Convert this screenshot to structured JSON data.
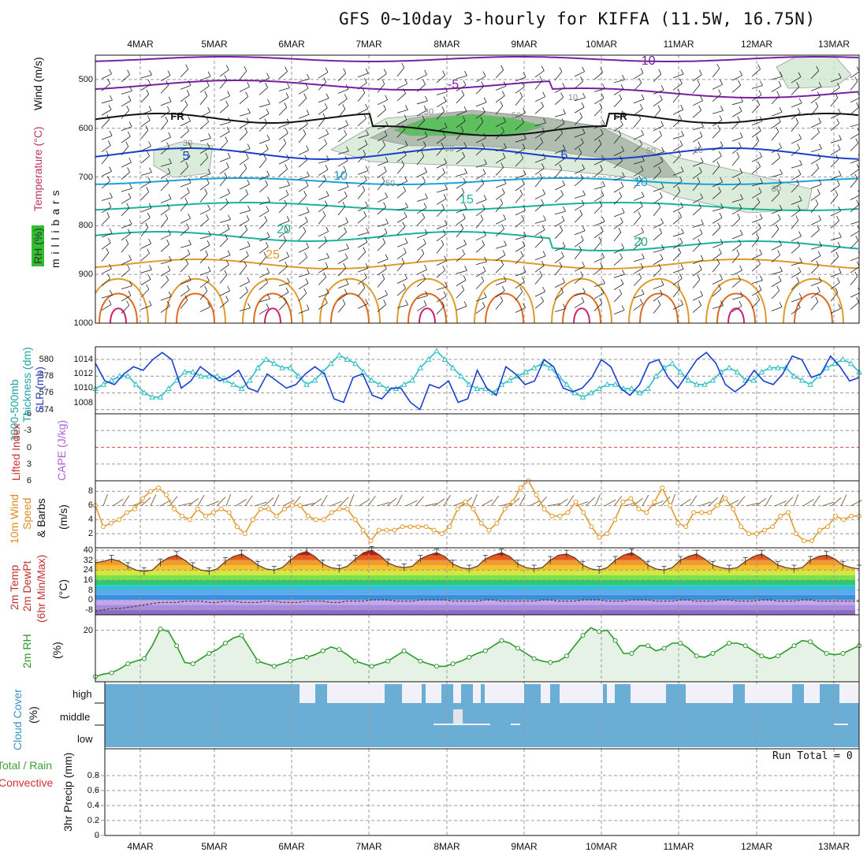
{
  "title": "GFS 0~10day 3-hourly for KIFFA (11.5W, 16.75N)",
  "dates": [
    "4MAR",
    "5MAR",
    "6MAR",
    "7MAR",
    "8MAR",
    "9MAR",
    "10MAR",
    "11MAR",
    "12MAR",
    "13MAR"
  ],
  "colors": {
    "grid": "#999999",
    "isotherm_cold": "#7a1fa2",
    "isotherm_blue": "#1a3fcf",
    "isotherm_cyan": "#1aa3d9",
    "isotherm_teal": "#19b39a",
    "isotherm_orange": "#e09a2a",
    "isotherm_red": "#d0206a",
    "rh_fill": "#7fc47f",
    "slp": "#1a3fcf",
    "thickness": "#2bbfc4",
    "wind10m": "#e49a2a",
    "rh2m": "#2a9a2a",
    "cloud": "#6aaed6",
    "lifted_zero": "#e05050"
  },
  "chart_data": [
    {
      "type": "heatmap",
      "ylabel": "m i l l i b a r s",
      "side_labels": [
        "Wind (m/s)",
        "Temperature (°C)",
        "RH (%)"
      ],
      "y_ticks": [
        "500",
        "600",
        "700",
        "800",
        "900",
        "1000"
      ],
      "ylim": [
        450,
        1000
      ],
      "isotherm_labels": [
        "-10",
        "-5",
        "FR",
        "FR",
        "5",
        "5",
        "10",
        "10",
        "15",
        "20",
        "20",
        "25"
      ],
      "rh_labels": [
        "30",
        "30",
        "50",
        "50",
        "60",
        "50",
        "10",
        "30",
        "10"
      ]
    },
    {
      "type": "line",
      "side_labels": [
        "1000-500mb",
        "Thickness (dm)",
        "SLP (mb)"
      ],
      "y_ticks_left": [
        "580",
        "578",
        "576",
        "574"
      ],
      "y_ticks_right": [
        "1014",
        "1012",
        "1010",
        "1008"
      ],
      "series": [
        {
          "name": "SLP (mb)",
          "values": [
            1013.5,
            1011.0,
            1010.5,
            1012.0,
            1013.0,
            1012.5,
            1014.0,
            1015.0,
            1014.0,
            1010.0,
            1011.0,
            1013.0,
            1012.0,
            1011.0,
            1011.5,
            1012.5,
            1010.0,
            1009.5,
            1012.0,
            1011.0,
            1010.0,
            1010.5,
            1012.0,
            1013.0,
            1012.0,
            1008.5,
            1008.0,
            1011.5,
            1012.0,
            1009.0,
            1008.5,
            1010.0,
            1010.0,
            1008.0,
            1007.0,
            1010.5,
            1010.0,
            1011.0,
            1008.0,
            1008.5,
            1012.5,
            1010.0,
            1009.0,
            1013.0,
            1012.0,
            1010.5,
            1011.0,
            1014.0,
            1013.0,
            1010.0,
            1009.5,
            1010.0,
            1011.5,
            1014.0,
            1013.0,
            1010.0,
            1009.0,
            1010.5,
            1013.5,
            1014.0,
            1011.5,
            1010.0,
            1012.0,
            1014.0,
            1015.0,
            1013.5,
            1010.5,
            1009.5,
            1010.5,
            1012.5,
            1011.0,
            1010.5,
            1012.0,
            1014.5,
            1014.0,
            1011.5,
            1012.0,
            1014.5,
            1013.0,
            1011.0,
            1011.5
          ]
        },
        {
          "name": "1000-500mb Thickness (dm)",
          "values": [
            576.5,
            577.0,
            577.5,
            578.0,
            578.0,
            577.0,
            576.0,
            575.5,
            575.5,
            576.5,
            577.5,
            578.5,
            578.5,
            578.0,
            578.0,
            578.0,
            577.5,
            577.0,
            576.5,
            577.5,
            579.0,
            580.0,
            579.5,
            579.0,
            579.0,
            578.0,
            577.0,
            577.5,
            578.5,
            579.5,
            580.5,
            580.0,
            579.5,
            578.5,
            577.5,
            577.0,
            576.5,
            576.5,
            577.0,
            577.5,
            579.0,
            580.0,
            581.0,
            580.0,
            579.0,
            578.0,
            577.0,
            576.5,
            576.5,
            576.0,
            577.0,
            577.5,
            578.0,
            578.5,
            579.0,
            579.5,
            579.0,
            578.0,
            577.0,
            576.0,
            575.5,
            576.0,
            576.5,
            577.0,
            577.0,
            576.5,
            576.5,
            576.0,
            576.5,
            578.0,
            579.0,
            579.5,
            578.5,
            577.5,
            577.0,
            577.0,
            577.5,
            578.5,
            579.0,
            578.5,
            577.5,
            577.5,
            578.5,
            579.0,
            579.0,
            579.0,
            578.0,
            577.5,
            577.0,
            578.0,
            579.0,
            579.5,
            580.0,
            579.5,
            578.5
          ]
        }
      ]
    },
    {
      "type": "line",
      "side_labels": [
        "Lifted Index",
        "CAPE (J/kg)"
      ],
      "y_ticks": [
        "-6",
        "-3",
        "0",
        "3",
        "6"
      ],
      "ylim": [
        -6,
        6
      ],
      "series": []
    },
    {
      "type": "line",
      "side_labels": [
        "10m Wind",
        "Speed",
        "& Barbs"
      ],
      "unit": "(m/s)",
      "y_ticks": [
        "8",
        "6",
        "4",
        "2"
      ],
      "ylim": [
        0,
        9.5
      ],
      "series": [
        {
          "name": "10m Wind Speed",
          "values": [
            6.0,
            3.0,
            3.5,
            4.0,
            5.0,
            5.5,
            7.0,
            8.0,
            8.5,
            7.5,
            5.5,
            4.5,
            4.0,
            5.5,
            4.5,
            5.0,
            5.5,
            5.0,
            3.0,
            2.0,
            4.0,
            5.5,
            5.5,
            4.5,
            5.5,
            6.0,
            6.0,
            4.5,
            4.0,
            4.0,
            5.0,
            5.5,
            5.5,
            4.0,
            2.5,
            1.0,
            2.5,
            2.5,
            2.5,
            3.0,
            3.0,
            3.0,
            3.0,
            2.5,
            2.0,
            3.0,
            5.5,
            6.5,
            5.5,
            3.5,
            2.5,
            3.5,
            5.5,
            6.5,
            8.5,
            9.5,
            7.5,
            5.5,
            4.5,
            4.5,
            5.0,
            6.5,
            5.0,
            3.0,
            1.5,
            2.0,
            4.0,
            6.5,
            7.0,
            5.5,
            5.0,
            6.5,
            8.5,
            6.0,
            3.5,
            3.0,
            5.0,
            5.0,
            5.0,
            6.0,
            7.0,
            5.5,
            3.0,
            2.0,
            2.0,
            2.5,
            3.0,
            4.5,
            5.0,
            2.0,
            1.0,
            1.0,
            2.5,
            3.0,
            4.5,
            4.0,
            4.5,
            4.5
          ]
        }
      ]
    },
    {
      "type": "area",
      "side_labels": [
        "2m Temp",
        "2m DewPt",
        "(6hr Min/Max)"
      ],
      "unit": "(°C)",
      "y_ticks": [
        "40",
        "32",
        "24",
        "16",
        "8",
        "0",
        "-8"
      ],
      "ylim": [
        -12,
        42
      ],
      "series": [
        {
          "name": "2m Temp",
          "values": [
            30,
            31,
            33,
            31,
            27,
            24,
            23,
            24,
            30,
            34,
            36,
            32,
            27,
            24,
            23,
            25,
            31,
            35,
            37,
            33,
            28,
            25,
            24,
            26,
            32,
            37,
            39,
            35,
            29,
            26,
            25,
            27,
            33,
            38,
            40,
            36,
            30,
            27,
            26,
            27,
            33,
            36,
            38,
            35,
            29,
            26,
            25,
            27,
            33,
            36,
            38,
            35,
            29,
            26,
            25,
            26,
            32,
            36,
            37,
            34,
            28,
            25,
            24,
            26,
            32,
            36,
            38,
            34,
            28,
            25,
            24,
            26,
            32,
            35,
            37,
            33,
            28,
            26,
            25,
            26,
            31,
            35,
            37,
            33,
            28,
            26,
            25,
            26,
            32,
            35,
            36,
            33,
            28,
            26,
            25
          ]
        },
        {
          "name": "2m DewPt",
          "values": [
            -9,
            -8,
            -7,
            -7,
            -6,
            -5,
            -4,
            -3,
            -2,
            -2,
            -2,
            -1,
            -1,
            -1,
            -2,
            -2,
            -1,
            -1,
            -2,
            -2,
            -2,
            -1,
            -1,
            -2,
            -2,
            -2,
            -1,
            -1,
            -1,
            -2,
            -2,
            -1,
            -1,
            -1,
            0,
            0,
            0,
            -1,
            -1,
            -1,
            0,
            0,
            0,
            0,
            -1,
            -1,
            -1,
            -1,
            0,
            0,
            -1,
            -1,
            -1,
            -1,
            -1,
            0,
            0,
            -1,
            -1,
            -1,
            0,
            0,
            0,
            -1,
            -1,
            -1,
            0,
            0,
            0,
            -1,
            -1,
            -1,
            0,
            0,
            -1,
            -1,
            -1,
            0,
            0,
            -1,
            -1,
            -1,
            0,
            0,
            -1,
            -1,
            -1,
            0,
            0,
            -1,
            -1,
            -1,
            -1,
            -1,
            -1
          ]
        }
      ]
    },
    {
      "type": "area",
      "side_labels": [
        "2m RH"
      ],
      "unit": "(%)",
      "y_ticks": [
        "20"
      ],
      "ylim": [
        0,
        26
      ],
      "series": [
        {
          "name": "2m RH",
          "values": [
            2,
            3,
            3.5,
            5,
            7,
            8,
            9,
            14,
            20.5,
            19.5,
            14,
            7.5,
            7,
            9,
            11,
            12.5,
            15,
            17,
            18,
            13,
            8,
            7,
            6,
            7,
            8,
            9,
            9.5,
            10.5,
            12,
            13.5,
            12.5,
            10.5,
            8,
            7,
            6,
            7,
            8,
            10,
            12,
            10,
            8,
            7,
            6,
            6,
            7,
            8,
            9.5,
            11,
            12,
            14,
            16,
            15,
            13,
            11,
            9,
            8,
            7.5,
            8,
            10,
            14,
            18,
            21,
            19.5,
            20,
            16,
            11,
            11,
            14,
            14,
            12,
            13,
            15,
            15,
            13,
            10,
            9.5,
            11,
            13,
            15,
            15,
            14,
            12,
            10,
            9,
            10,
            12,
            14,
            16,
            15.5,
            13,
            11,
            10.5,
            11,
            12.5,
            14
          ]
        }
      ]
    },
    {
      "type": "bar",
      "side_labels": [
        "Cloud Cover",
        "(%)"
      ],
      "categories": [
        "high",
        "middle",
        "low"
      ]
    },
    {
      "type": "bar",
      "side_labels": [
        "Total / Rain",
        "Convective",
        "3hr Precip (mm)"
      ],
      "y_ticks": [
        "0.8",
        "0.6",
        "0.4",
        "0.2",
        "0"
      ],
      "ylim": [
        0,
        1
      ],
      "annotation": "Run Total = 0",
      "values": []
    }
  ]
}
